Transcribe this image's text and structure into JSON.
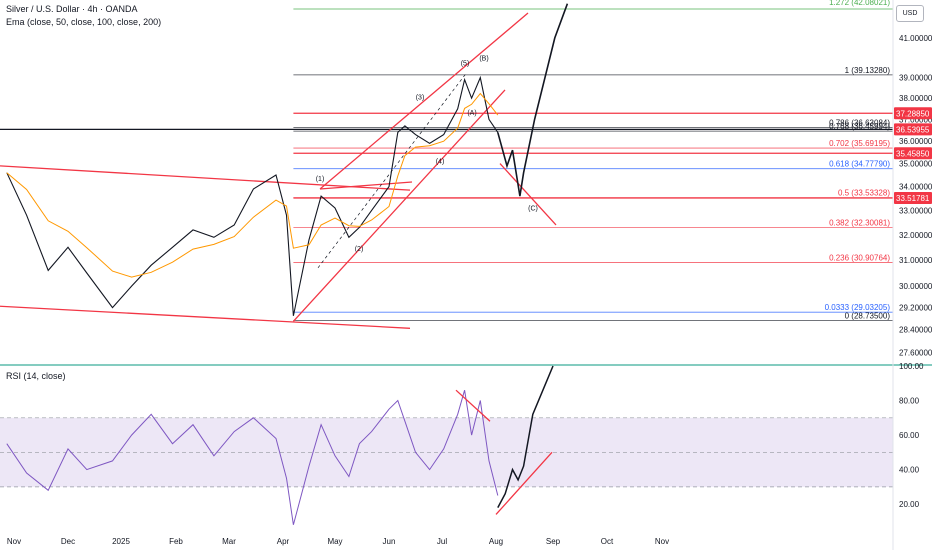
{
  "header": {
    "title": "Silver / U.S. Dollar · 4h · OANDA",
    "indicator": "Ema (close, 50, close, 100, close, 200)",
    "currency": "USD"
  },
  "rsi_panel": {
    "title": "RSI (14, close)"
  },
  "colors": {
    "price_line": "#131722",
    "channel_red": "#f23645",
    "rsi_line": "#7e57c2",
    "rsi_band": "#ede7f6",
    "ema_orange": "#ff9800",
    "fib_blue": "#2962ff",
    "fib_green": "#4caf50",
    "divider_green": "#089981"
  },
  "chart_data": [
    {
      "type": "line",
      "title": "Silver / U.S. Dollar · 4h · OANDA",
      "x_ticks": [
        "Nov",
        "Dec",
        "2025",
        "Feb",
        "Mar",
        "Apr",
        "May",
        "Jun",
        "Jul",
        "Aug",
        "Sep",
        "Oct",
        "Nov"
      ],
      "y_ticks": [
        "41.00000",
        "39.00000",
        "38.00000",
        "37.00000",
        "36.00000",
        "35.00000",
        "34.00000",
        "33.00000",
        "32.00000",
        "31.00000",
        "30.00000",
        "29.20000",
        "28.40000",
        "27.60000"
      ],
      "ylim": [
        27.2,
        43.0
      ],
      "scale": "log",
      "series": [
        {
          "x": [
            "Oct 28",
            "Nov 8",
            "Nov 20",
            "Dec 1",
            "Dec 12",
            "Dec 27",
            "Jan 7",
            "Jan 18",
            "Jan 30",
            "Feb 10",
            "Feb 21",
            "Mar 4",
            "Mar 15",
            "Mar 28",
            "Apr 3",
            "Apr 7",
            "Apr 16",
            "Apr 23",
            "May 1",
            "May 9",
            "May 15",
            "May 22",
            "Jun 1",
            "Jun 6",
            "Jun 10",
            "Jun 16",
            "Jun 24",
            "Jul 2",
            "Jul 10",
            "Jul 14",
            "Jul 18",
            "Jul 23",
            "Jul 28",
            "Aug 2"
          ],
          "values": [
            34.6,
            32.8,
            30.6,
            31.5,
            30.5,
            29.2,
            30.0,
            30.8,
            31.5,
            32.2,
            31.9,
            32.4,
            33.9,
            34.5,
            32.8,
            28.9,
            31.8,
            33.6,
            33.1,
            31.9,
            32.3,
            33.0,
            34.0,
            36.4,
            36.7,
            36.3,
            35.9,
            36.3,
            37.5,
            38.9,
            38.0,
            39.0,
            37.0,
            36.4
          ]
        }
      ],
      "projection": {
        "x": [
          "Aug 2",
          "Aug 7",
          "Aug 10",
          "Aug 14",
          "Aug 16",
          "Aug 22",
          "Sep 2",
          "Sep 9"
        ],
        "values": [
          36.4,
          34.9,
          35.6,
          33.6,
          34.6,
          37.0,
          41.0,
          42.8
        ]
      },
      "fib_levels": [
        {
          "label": "1 (39.13280)",
          "value": 39.1328
        },
        {
          "label": "0.786 (36.63084)",
          "value": 36.63084
        },
        {
          "label": "0.768 (36.45994)",
          "value": 36.45994
        },
        {
          "label": "0.702 (35.69195)",
          "value": 35.69195
        },
        {
          "label": "0.618 (34.77790)",
          "value": 34.7779
        },
        {
          "label": "0.5 (33.53328)",
          "value": 33.53328
        },
        {
          "label": "0.382 (32.30081)",
          "value": 32.30081
        },
        {
          "label": "0.236 (30.90764)",
          "value": 30.90764
        },
        {
          "label": "0.0333 (29.03205)",
          "value": 29.03205
        },
        {
          "label": "0 (28.73500)",
          "value": 28.735
        }
      ],
      "top_level_label": "1.272 (42.08021)",
      "horizontal_lines": [
        37.2885,
        36.53955,
        35.4585,
        33.51781
      ],
      "price_tags": [
        "37.28850",
        "36.53955",
        "35.45850",
        "33.51781"
      ],
      "wave_labels": [
        "(1)",
        "(2)",
        "(3)",
        "(4)",
        "(5)",
        "(A)",
        "(B)",
        "(C)"
      ]
    },
    {
      "type": "line",
      "title": "RSI (14, close)",
      "y_ticks": [
        "100.00",
        "80.00",
        "60.00",
        "40.00",
        "20.00"
      ],
      "ylim": [
        5,
        100
      ],
      "bands": {
        "upper": 70,
        "middle": 50,
        "lower": 30
      },
      "series": [
        {
          "x": [
            "Oct 28",
            "Nov 8",
            "Nov 20",
            "Dec 1",
            "Dec 12",
            "Dec 27",
            "Jan 7",
            "Jan 18",
            "Jan 30",
            "Feb 10",
            "Feb 21",
            "Mar 4",
            "Mar 15",
            "Mar 28",
            "Apr 3",
            "Apr 7",
            "Apr 16",
            "Apr 23",
            "May 1",
            "May 9",
            "May 15",
            "May 22",
            "Jun 1",
            "Jun 6",
            "Jun 10",
            "Jun 16",
            "Jun 24",
            "Jul 2",
            "Jul 10",
            "Jul 14",
            "Jul 18",
            "Jul 23",
            "Jul 28",
            "Aug 2"
          ],
          "values": [
            55,
            38,
            28,
            52,
            40,
            45,
            60,
            72,
            55,
            66,
            48,
            62,
            70,
            58,
            35,
            8,
            42,
            66,
            48,
            36,
            55,
            62,
            75,
            80,
            68,
            50,
            40,
            52,
            72,
            86,
            60,
            80,
            45,
            25
          ]
        }
      ],
      "projection": {
        "x": [
          "Aug 2",
          "Aug 6",
          "Aug 10",
          "Aug 13",
          "Aug 16",
          "Aug 21",
          "Sep 1"
        ],
        "values": [
          18,
          26,
          40,
          34,
          42,
          72,
          100
        ]
      }
    }
  ]
}
